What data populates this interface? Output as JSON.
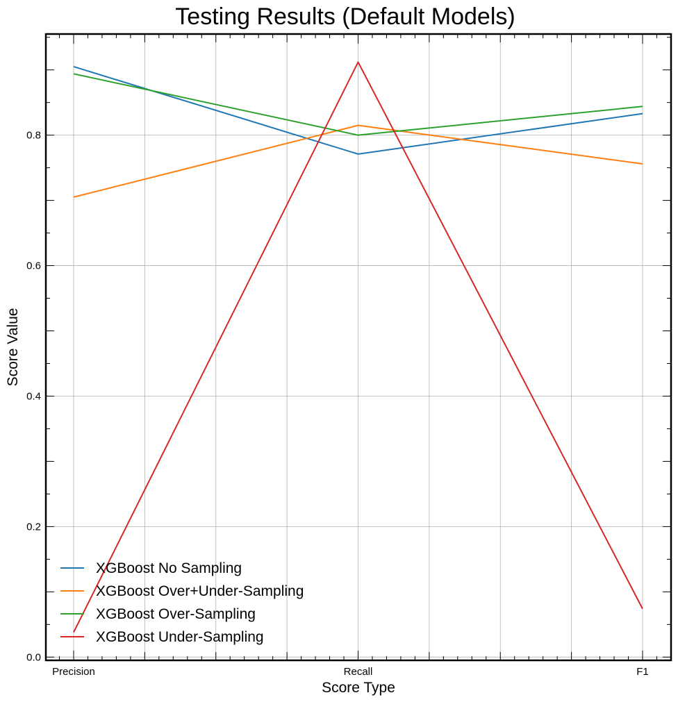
{
  "chart_data": {
    "type": "line",
    "title": "Testing Results (Default Models)",
    "xlabel": "Score Type",
    "ylabel": "Score Value",
    "categories": [
      "Precision",
      "Recall",
      "F1"
    ],
    "ylim": [
      -0.005,
      0.955
    ],
    "yticks": [
      0.0,
      0.2,
      0.4,
      0.6,
      0.8
    ],
    "ytick_labels": [
      "0.0",
      "0.2",
      "0.4",
      "0.6",
      "0.8"
    ],
    "grid": true,
    "legend_position": "lower-left",
    "series": [
      {
        "name": "XGBoost No Sampling",
        "color": "#1f77b4",
        "values": [
          0.905,
          0.771,
          0.833
        ]
      },
      {
        "name": "XGBoost Over+Under-Sampling",
        "color": "#ff7f0e",
        "values": [
          0.705,
          0.815,
          0.756
        ]
      },
      {
        "name": "XGBoost Over-Sampling",
        "color": "#2ca02c",
        "values": [
          0.894,
          0.8,
          0.844
        ]
      },
      {
        "name": "XGBoost Under-Sampling",
        "color": "#d62728",
        "values": [
          0.038,
          0.912,
          0.074
        ]
      }
    ]
  }
}
